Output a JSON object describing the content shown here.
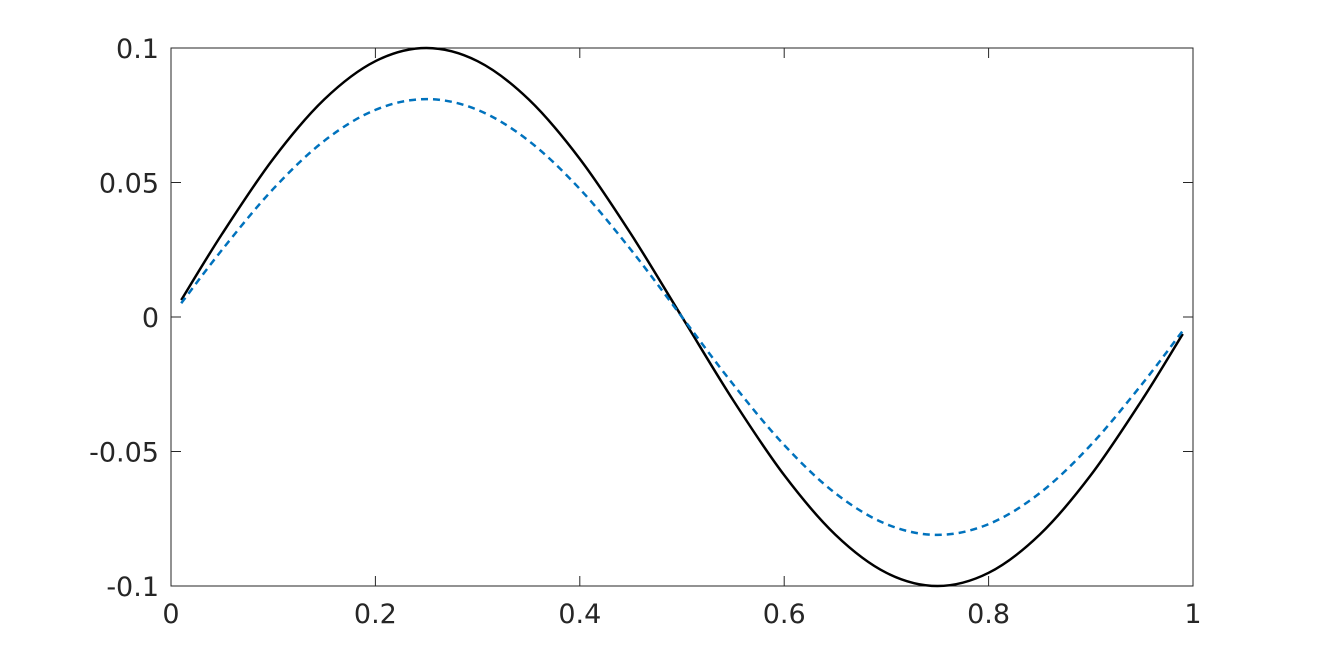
{
  "chart_data": {
    "type": "line",
    "title": "",
    "xlabel": "",
    "ylabel": "",
    "xlim": [
      0,
      1
    ],
    "ylim": [
      -0.1,
      0.1
    ],
    "grid": false,
    "legend": "none",
    "x_ticks": [
      {
        "value": 0,
        "label": "0"
      },
      {
        "value": 0.2,
        "label": "0.2"
      },
      {
        "value": 0.4,
        "label": "0.4"
      },
      {
        "value": 0.6,
        "label": "0.6"
      },
      {
        "value": 0.8,
        "label": "0.8"
      },
      {
        "value": 1,
        "label": "1"
      }
    ],
    "y_ticks": [
      {
        "value": 0.1,
        "label": "0.1"
      },
      {
        "value": 0.05,
        "label": "0.05"
      },
      {
        "value": 0,
        "label": "0"
      },
      {
        "value": -0.05,
        "label": "-0.05"
      },
      {
        "value": -0.1,
        "label": "-0.1"
      }
    ],
    "series": [
      {
        "style": "solid",
        "color": "#000000",
        "x": [
          0.01,
          0.05,
          0.1,
          0.15,
          0.2,
          0.25,
          0.3,
          0.35,
          0.4,
          0.45,
          0.5,
          0.55,
          0.6,
          0.65,
          0.7,
          0.75,
          0.8,
          0.85,
          0.9,
          0.95,
          0.99
        ],
        "y": [
          0.0063,
          0.0309,
          0.0588,
          0.0809,
          0.0951,
          0.1,
          0.0951,
          0.0809,
          0.0588,
          0.0309,
          0.0,
          -0.0309,
          -0.0588,
          -0.0809,
          -0.0951,
          -0.1,
          -0.0951,
          -0.0809,
          -0.0588,
          -0.0309,
          -0.0063
        ]
      },
      {
        "style": "dashed",
        "color": "#0072BD",
        "x": [
          0.01,
          0.05,
          0.1,
          0.15,
          0.2,
          0.25,
          0.3,
          0.35,
          0.4,
          0.45,
          0.5,
          0.55,
          0.6,
          0.65,
          0.7,
          0.75,
          0.8,
          0.85,
          0.9,
          0.95,
          0.99
        ],
        "y": [
          0.0051,
          0.025,
          0.0476,
          0.0655,
          0.077,
          0.081,
          0.077,
          0.0655,
          0.0476,
          0.025,
          0.0,
          -0.025,
          -0.0476,
          -0.0655,
          -0.077,
          -0.081,
          -0.077,
          -0.0655,
          -0.0476,
          -0.025,
          -0.0051
        ]
      }
    ]
  }
}
